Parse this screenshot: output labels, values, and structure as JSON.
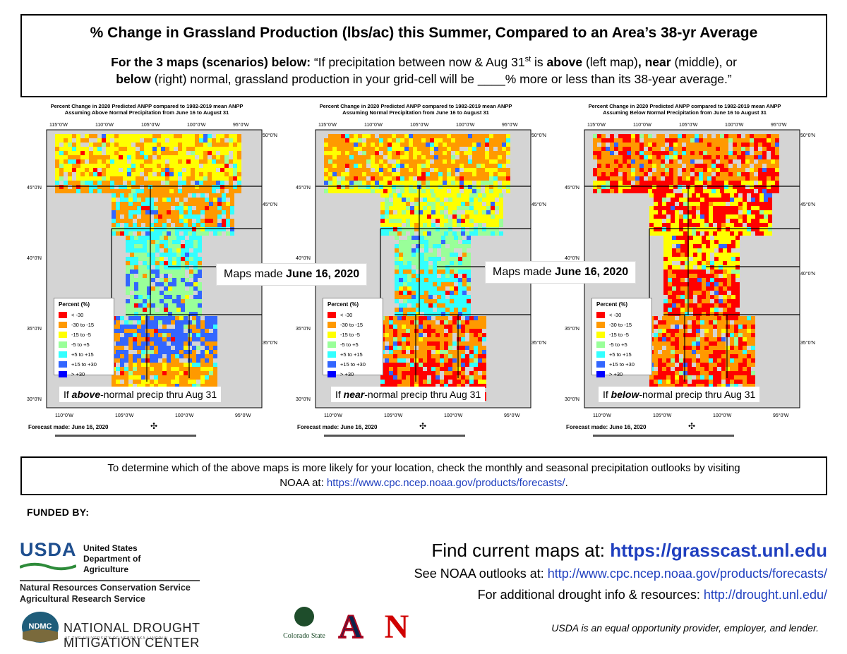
{
  "header": {
    "title": "% Change in Grassland Production (lbs/ac) this Summer, Compared to an Area’s 38-yr Average",
    "line1_bold": "For the 3 maps (scenarios) below:",
    "line1_a": "  “If precipitation between now & Aug 31",
    "line1_sup": "st",
    "line1_b": " is ",
    "line1_above": "above",
    "line1_c": " (left map)",
    "line1_comma": ", ",
    "line1_near": "near",
    "line1_d": " (middle), or",
    "line2_below": "below",
    "line2_rest": " (right) normal, grassland production in your grid-cell will be ____% more or less than its 38-year average.”"
  },
  "maps": [
    {
      "head1": "Percent Change in 2020 Predicted ANPP compared to 1982-2019 mean ANPP",
      "head2": "Assuming Above Normal Precipitation from June 16 to August 31",
      "caption_pre": "If ",
      "caption_bold": "above",
      "caption_post": "-normal precip thru Aug 31",
      "forecast": "Forecast made: June 16, 2020",
      "dominant": [
        "#ffff00",
        "#ff9900",
        "#33ffff",
        "#99ff99",
        "#3366ff",
        "#ff9900"
      ]
    },
    {
      "head1": "Percent Change in 2020 Predicted ANPP compared to 1982-2019 mean ANPP",
      "head2": "Assuming Normal Precipitation from June 16 to August 31",
      "caption_pre": "If ",
      "caption_bold": "near",
      "caption_post": "-normal precip thru Aug 31",
      "forecast": "Forecast made: June 16, 2020",
      "dominant": [
        "#ff9900",
        "#ffff00",
        "#99ff99",
        "#33ffff",
        "#ff9900",
        "#ff0000"
      ]
    },
    {
      "head1": "Percent Change in 2020 Predicted ANPP compared to 1982-2019 mean ANPP",
      "head2": "Assuming Below Normal Precipitation from June 16 to August 31",
      "caption_pre": "If ",
      "caption_bold": "below",
      "caption_post": "-normal precip thru Aug 31",
      "forecast": "Forecast made: June 16, 2020",
      "dominant": [
        "#ff9900",
        "#ff0000",
        "#ffff00",
        "#ff0000",
        "#ff9900",
        "#ff0000"
      ]
    }
  ],
  "legend": {
    "title": "Percent (%)",
    "items": [
      {
        "label": "< -30",
        "color": "#ff0000"
      },
      {
        "label": "-30 to -15",
        "color": "#ff9900"
      },
      {
        "label": "-15 to -5",
        "color": "#ffff00"
      },
      {
        "label": "-5 to +5",
        "color": "#99ff99"
      },
      {
        "label": "+5 to +15",
        "color": "#33ffff"
      },
      {
        "label": "+15 to +30",
        "color": "#3366ff"
      },
      {
        "label": "> +30",
        "color": "#0000ff"
      }
    ]
  },
  "axes": {
    "top_lon": [
      "115°0'W",
      "110°0'W",
      "105°0'W",
      "100°0'W",
      "95°0'W"
    ],
    "bottom_lon_left": [
      "110°0'W",
      "105°0'W",
      "100°0'W",
      "95°0'W"
    ],
    "left_lat": [
      "45°0'N",
      "40°0'N",
      "35°0'N",
      "30°0'N"
    ],
    "right_lat": [
      "50°0'N",
      "45°0'N",
      "40°0'N",
      "35°0'N"
    ]
  },
  "made_label_pre": "Maps made ",
  "made_label_bold": "June 16, 2020",
  "bottom": {
    "text": "To determine which of the above maps is more likely for your location, check the monthly and seasonal precipitation outlooks by visiting",
    "noaa": "NOAA at: ",
    "noaa_url": "https://www.cpc.ncep.noaa.gov/products/forecasts/",
    "dot": "."
  },
  "funded": "FUNDED BY:",
  "usda": {
    "logo": "USDA",
    "dept1": "United States",
    "dept2": "Department of",
    "dept3": "Agriculture",
    "sub1": "Natural Resources Conservation Service",
    "sub2": "Agricultural Research Service"
  },
  "ndmc": {
    "badge": "NDMC",
    "name": "NATIONAL DROUGHT MITIGATION CENTER",
    "sub": "AT THE UNIVERSITY OF NEBRASKA-LINCOLN"
  },
  "partners": {
    "csu": "Colorado State",
    "az": "A",
    "neb": "N"
  },
  "links": {
    "find_pre": "Find current maps at: ",
    "find_url": "https://grasscast.unl.edu",
    "noaa_pre": "See NOAA outlooks at: ",
    "noaa_url": "http://www.cpc.ncep.noaa.gov/products/forecasts/",
    "drought_pre": "For additional drought info & resources:  ",
    "drought_url": "http://drought.unl.edu/"
  },
  "equal": "USDA is an equal opportunity provider, employer, and lender."
}
